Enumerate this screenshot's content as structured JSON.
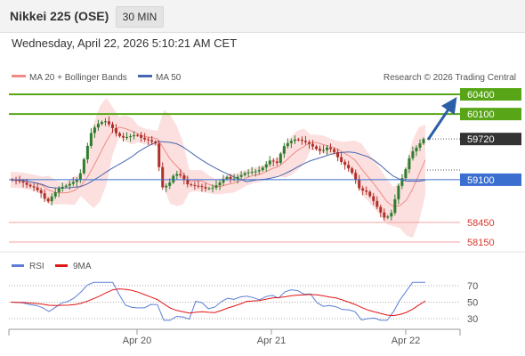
{
  "header": {
    "title": "Nikkei 225 (OSE)",
    "timeframe": "30 MIN"
  },
  "datetime": "Wednesday, April 22, 2026 5:10:21 AM CET",
  "legend": {
    "ma20": "MA 20 + Bollinger Bands",
    "ma50": "MA 50",
    "credit": "Research © 2026 Trading Central"
  },
  "rsi_legend": {
    "rsi": "RSI",
    "ma": "9MA"
  },
  "colors": {
    "up": "#2e7d2e",
    "down": "#b0302a",
    "bollinger": "#f9c7c4",
    "ma20": "#f08a85",
    "ma50": "#4866b0",
    "resistance": "#58a618",
    "support": "#f4a2a2",
    "pivot": "#3a6fd0",
    "current_bg": "#333333",
    "arrow": "#2b5fa8",
    "rsi": "#5b7fd6",
    "rsi_ma": "#e01515"
  },
  "chart_data": {
    "type": "line",
    "title": "Nikkei 225 (OSE)",
    "timeframe": "30 MIN",
    "x_labels": [
      "Apr 20",
      "Apr 21",
      "Apr 22"
    ],
    "y_range": [
      57920,
      60480
    ],
    "levels": [
      {
        "value": 60400,
        "label": "60400",
        "kind": "resistance"
      },
      {
        "value": 60100,
        "label": "60100",
        "kind": "resistance"
      },
      {
        "value": 59720,
        "label": "59720",
        "kind": "current"
      },
      {
        "value": 59100,
        "label": "59100",
        "kind": "pivot"
      },
      {
        "value": 58450,
        "label": "58450",
        "kind": "support"
      },
      {
        "value": 58150,
        "label": "58150",
        "kind": "support"
      }
    ],
    "price_series": [
      59100,
      59090,
      59070,
      59010,
      58980,
      58900,
      58750,
      58880,
      58980,
      59010,
      59060,
      59120,
      59500,
      59850,
      59950,
      60000,
      59920,
      59780,
      59740,
      59760,
      59790,
      59720,
      59700,
      59650,
      58980,
      59020,
      59200,
      59160,
      59030,
      59010,
      59000,
      58960,
      58980,
      59050,
      59150,
      59100,
      59150,
      59200,
      59220,
      59230,
      59300,
      59400,
      59350,
      59600,
      59680,
      59720,
      59690,
      59650,
      59580,
      59530,
      59600,
      59520,
      59380,
      59300,
      59180,
      58950,
      58920,
      58800,
      58640,
      58500,
      58600,
      58990,
      59200,
      59500,
      59600,
      59720
    ],
    "rsi": {
      "levels": [
        70,
        50,
        30
      ],
      "range": [
        20,
        80
      ]
    }
  }
}
